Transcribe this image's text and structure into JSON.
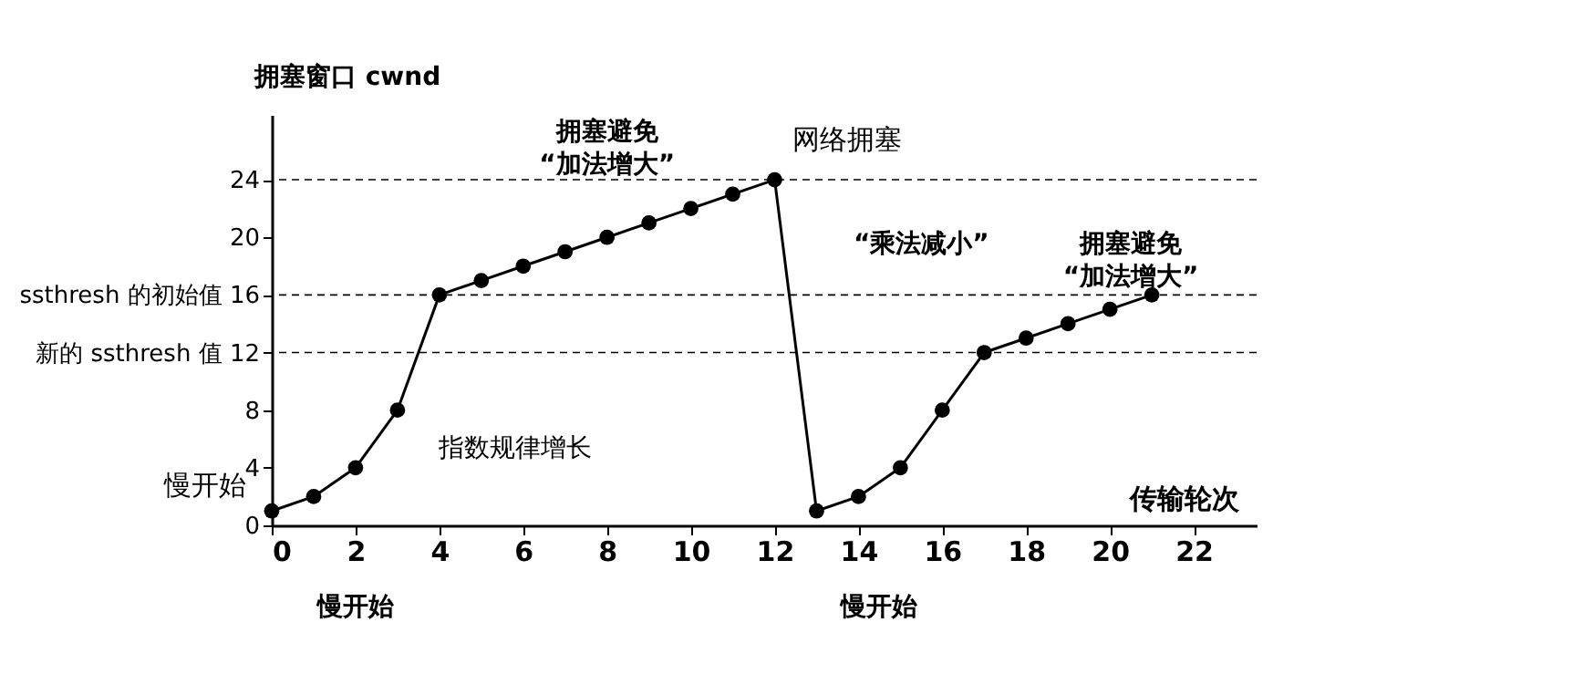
{
  "chart_data": {
    "type": "line",
    "xlabel": "传输轮次",
    "ylabel": "拥塞窗口 cwnd",
    "x": [
      0,
      1,
      2,
      3,
      4,
      5,
      6,
      7,
      8,
      9,
      10,
      11,
      12,
      13,
      14,
      15,
      16,
      17,
      18,
      19,
      20,
      21
    ],
    "series": [
      {
        "color": "#000000",
        "values": [
          1,
          2,
          4,
          8,
          16,
          17,
          18,
          19,
          20,
          21,
          22,
          23,
          24,
          1,
          2,
          4,
          8,
          12,
          13,
          14,
          15,
          16
        ]
      }
    ],
    "xlim": [
      0,
      23.5
    ],
    "ylim": [
      0,
      28.5
    ],
    "xticks": [
      0,
      2,
      4,
      6,
      8,
      10,
      12,
      14,
      16,
      18,
      20,
      22
    ],
    "yticks": [
      0,
      4,
      8,
      {
        "value": 12,
        "label": "新的 ssthresh 值 12"
      },
      {
        "value": 16,
        "label": "ssthresh 的初始值 16"
      },
      20,
      24
    ],
    "ref_lines": [
      {
        "axis": "y",
        "value": 24,
        "line_style": "dashed",
        "color": "#000000"
      },
      {
        "axis": "y",
        "value": 16,
        "line_style": "dashed",
        "color": "#000000"
      },
      {
        "axis": "y",
        "value": 12,
        "line_style": "dashed",
        "color": "#000000"
      }
    ],
    "annotations": [
      {
        "text": "网络拥塞",
        "x": 12,
        "y": 24
      },
      {
        "text": "慢开始",
        "x": 0,
        "y": 1
      },
      "指数规律增长",
      "拥塞避免\n“加法增大”",
      "拥塞避免\n“加法增大”",
      "“乘法减小”",
      "慢开始",
      "慢开始"
    ],
    "marker": "circle",
    "line_style": "solid",
    "grid": false
  }
}
